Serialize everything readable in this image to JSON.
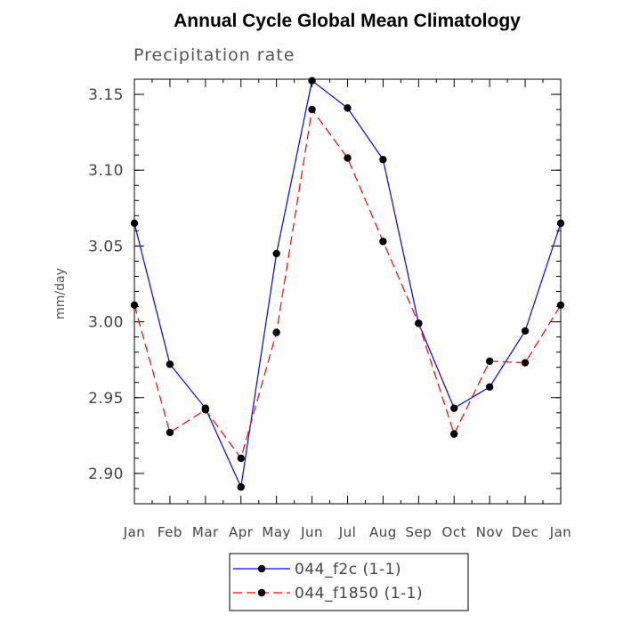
{
  "chart_data": {
    "type": "line",
    "title": "Annual Cycle Global Mean Climatology",
    "subtitle": "Precipitation rate",
    "xlabel": "",
    "ylabel": "mm/day",
    "categories": [
      "Jan",
      "Feb",
      "Mar",
      "Apr",
      "May",
      "Jun",
      "Jul",
      "Aug",
      "Sep",
      "Oct",
      "Nov",
      "Dec",
      "Jan"
    ],
    "ylim": [
      2.88,
      3.16
    ],
    "yticks": [
      "2.90",
      "2.95",
      "3.00",
      "3.05",
      "3.10",
      "3.15"
    ],
    "grid": false,
    "legend_position": "bottom",
    "series": [
      {
        "name": "044_f2c (1-1)",
        "color": "#0000ff",
        "dash": "solid",
        "values": [
          3.065,
          2.972,
          2.943,
          2.891,
          3.045,
          3.159,
          3.141,
          3.107,
          2.999,
          2.943,
          2.957,
          2.994,
          3.065
        ]
      },
      {
        "name": "044_f1850 (1-1)",
        "color": "#ff0000",
        "dash": "dashed",
        "values": [
          3.011,
          2.927,
          2.942,
          2.91,
          2.993,
          3.14,
          3.108,
          3.053,
          2.999,
          2.926,
          2.974,
          2.973,
          3.011
        ]
      }
    ]
  }
}
